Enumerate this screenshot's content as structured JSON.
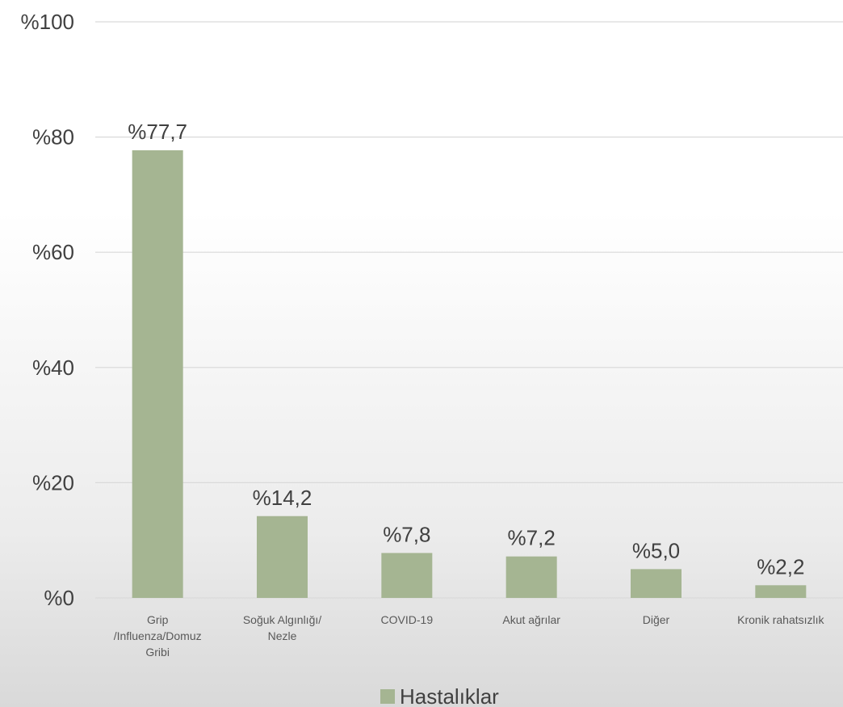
{
  "chart_data": {
    "type": "bar",
    "categories": [
      [
        "Grip",
        "/Influenza/Domuz",
        "Gribi"
      ],
      [
        "Soğuk Algınlığı/",
        "Nezle"
      ],
      [
        "COVID-19"
      ],
      [
        "Akut ağrılar"
      ],
      [
        "Diğer"
      ],
      [
        "Kronik rahatsızlık"
      ]
    ],
    "series": [
      {
        "name": "Hastalıklar",
        "values": [
          77.7,
          14.2,
          7.8,
          7.2,
          5.0,
          2.2
        ],
        "color": "#a5b592"
      }
    ],
    "data_labels": [
      "%77,7",
      "%14,2",
      "%7,8",
      "%7,2",
      "%5,0",
      "%2,2"
    ],
    "y_ticks": [
      {
        "value": 0,
        "label": "%0"
      },
      {
        "value": 20,
        "label": "%20"
      },
      {
        "value": 40,
        "label": "%40"
      },
      {
        "value": 60,
        "label": "%60"
      },
      {
        "value": 80,
        "label": "%80"
      },
      {
        "value": 100,
        "label": "%100"
      }
    ],
    "ylim": [
      0,
      100
    ],
    "grid": true,
    "legend_position": "bottom-center",
    "title": "",
    "xlabel": "",
    "ylabel": ""
  }
}
